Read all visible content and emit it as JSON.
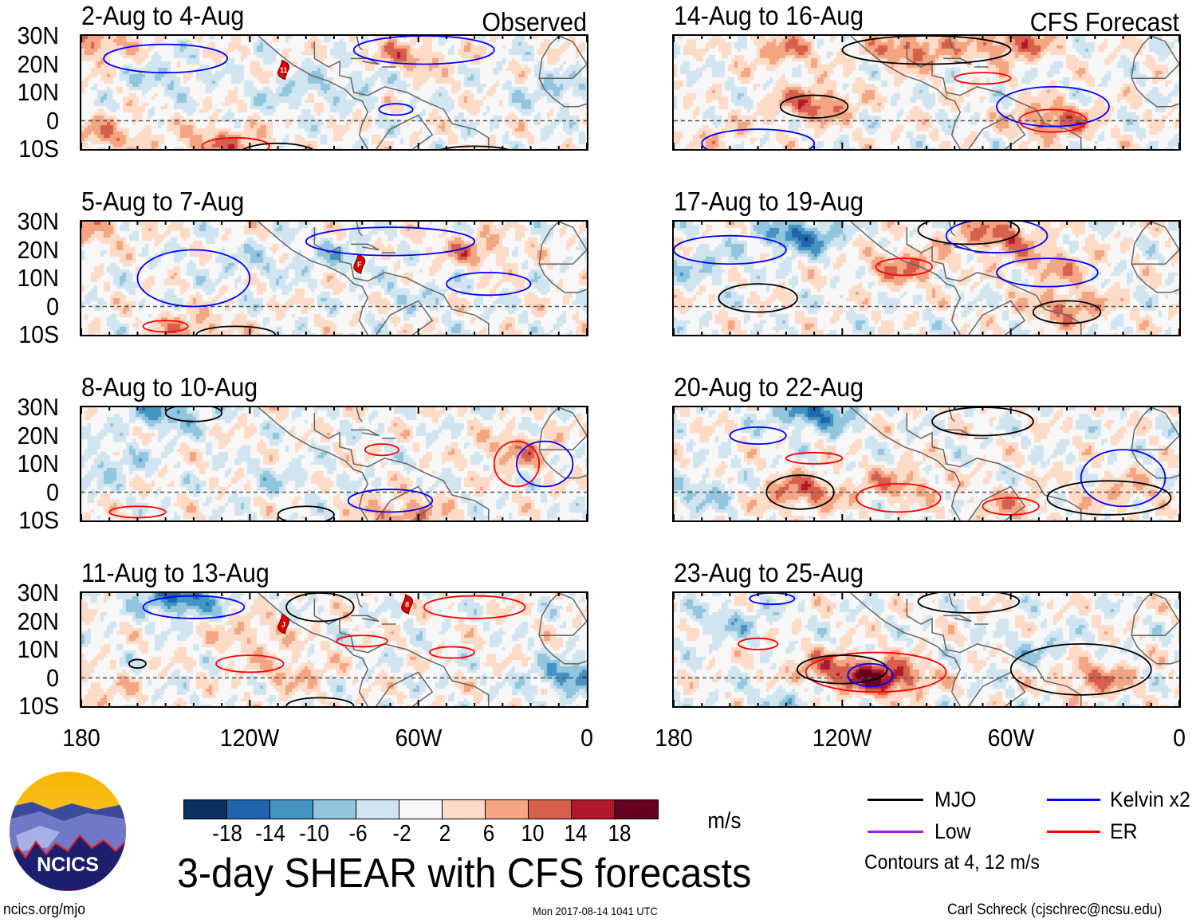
{
  "labels": {
    "observed": "Observed",
    "forecast": "CFS Forecast"
  },
  "lat_ticks": [
    "30N",
    "20N",
    "10N",
    "0",
    "10S"
  ],
  "lon_ticks": [
    "180",
    "120W",
    "60W",
    "0"
  ],
  "colorbar": {
    "colors": [
      "#0a2f61",
      "#2166ac",
      "#4393c3",
      "#92c5de",
      "#d1e5f0",
      "#f7f7f7",
      "#fddbc7",
      "#f4a582",
      "#d6604d",
      "#b2182b",
      "#67001f"
    ],
    "tick_labels": [
      "-18",
      "-14",
      "-10",
      "-6",
      "-2",
      "2",
      "6",
      "10",
      "14",
      "18"
    ],
    "levels": [
      -18,
      -14,
      -10,
      -6,
      -2,
      2,
      6,
      10,
      14,
      18
    ],
    "units": "m/s"
  },
  "legend": {
    "items": [
      {
        "label": "MJO",
        "color": "#000000"
      },
      {
        "label": "Kelvin x2",
        "color": "#0000ff"
      },
      {
        "label": "Low",
        "color": "#a020f0"
      },
      {
        "label": "ER",
        "color": "#ff0000"
      }
    ],
    "contours_note": "Contours at 4, 12 m/s"
  },
  "title": "3-day SHEAR with CFS forecasts",
  "logo": {
    "text": "NCICS"
  },
  "footer": {
    "left": "ncics.org/mjo",
    "center": "Mon 2017-08-14 1041 UTC",
    "right": "Carl Schreck (cjschrec@ncsu.edu)"
  },
  "chart_data": {
    "type": "heatmap",
    "domain": {
      "lon_range": [
        -180,
        0
      ],
      "lat_range": [
        -10,
        30
      ]
    },
    "panels": [
      {
        "title": "2-Aug to 4-Aug",
        "kind": "observed",
        "anomalies": [
          [
            -170,
            -5,
            8
          ],
          [
            -130,
            -8,
            10
          ],
          [
            -150,
            15,
            -5
          ],
          [
            -105,
            10,
            -5
          ],
          [
            -65,
            22,
            9
          ],
          [
            -10,
            10,
            -6
          ],
          [
            -177,
            27,
            10
          ],
          [
            -80,
            15,
            -5
          ]
        ],
        "contours": [
          [
            "kelvin",
            -150,
            22,
            22,
            5
          ],
          [
            "kelvin",
            -58,
            25,
            25,
            5
          ],
          [
            "er",
            -125,
            -9,
            12,
            3
          ],
          [
            "mjo",
            -110,
            -12,
            14,
            4
          ],
          [
            "kelvin",
            -68,
            4,
            6,
            2
          ],
          [
            "mjo",
            -40,
            -12,
            15,
            3
          ]
        ],
        "storms": [
          {
            "label": "11",
            "lon": -108,
            "lat": 18
          }
        ]
      },
      {
        "title": "5-Aug to 7-Aug",
        "kind": "observed",
        "anomalies": [
          [
            -140,
            -8,
            8
          ],
          [
            -40,
            20,
            8
          ],
          [
            -120,
            15,
            -4
          ],
          [
            -60,
            5,
            -4
          ],
          [
            -177,
            28,
            8
          ],
          [
            -90,
            18,
            -5
          ]
        ],
        "contours": [
          [
            "kelvin",
            -140,
            10,
            20,
            10
          ],
          [
            "kelvin",
            -70,
            23,
            30,
            5
          ],
          [
            "kelvin",
            -35,
            8,
            15,
            4
          ],
          [
            "er",
            -150,
            -7,
            8,
            2
          ],
          [
            "mjo",
            -125,
            -10,
            14,
            3
          ]
        ],
        "storms": [
          {
            "label": "F",
            "lon": -81,
            "lat": 15
          }
        ]
      },
      {
        "title": "8-Aug to 10-Aug",
        "kind": "observed",
        "anomalies": [
          [
            -150,
            28,
            -10
          ],
          [
            -65,
            -8,
            10
          ],
          [
            -25,
            15,
            8
          ],
          [
            -170,
            10,
            -6
          ],
          [
            -110,
            5,
            -4
          ]
        ],
        "contours": [
          [
            "mjo",
            -140,
            28,
            10,
            3
          ],
          [
            "er",
            -73,
            15,
            6,
            2
          ],
          [
            "er",
            -160,
            -7,
            10,
            2
          ],
          [
            "kelvin",
            -70,
            -3,
            15,
            4
          ],
          [
            "mjo",
            -100,
            -8,
            10,
            3
          ],
          [
            "er",
            -25,
            10,
            8,
            8
          ],
          [
            "kelvin",
            -15,
            10,
            10,
            8
          ]
        ],
        "storms": []
      },
      {
        "title": "11-Aug to 13-Aug",
        "kind": "observed",
        "anomalies": [
          [
            -145,
            28,
            -15
          ],
          [
            -5,
            0,
            -12
          ],
          [
            -120,
            15,
            6
          ],
          [
            -105,
            2,
            6
          ],
          [
            -175,
            -5,
            5
          ]
        ],
        "contours": [
          [
            "kelvin",
            -140,
            25,
            18,
            4
          ],
          [
            "mjo",
            -95,
            25,
            12,
            5
          ],
          [
            "er",
            -80,
            13,
            9,
            2
          ],
          [
            "er",
            -120,
            5,
            12,
            3
          ],
          [
            "er",
            -40,
            25,
            18,
            4
          ],
          [
            "er",
            -48,
            9,
            8,
            2
          ],
          [
            "mjo",
            -160,
            5,
            3,
            1.5
          ],
          [
            "mjo",
            -95,
            -10,
            12,
            3
          ]
        ],
        "storms": [
          {
            "label": "J",
            "lon": -108,
            "lat": 19
          },
          {
            "label": "8",
            "lon": -64,
            "lat": 26
          }
        ]
      },
      {
        "title": "14-Aug to 16-Aug",
        "kind": "forecast",
        "anomalies": [
          [
            -95,
            25,
            12
          ],
          [
            -130,
            6,
            12
          ],
          [
            -45,
            0,
            12
          ],
          [
            -140,
            25,
            8
          ],
          [
            -60,
            27,
            12
          ],
          [
            -165,
            -5,
            4
          ]
        ],
        "contours": [
          [
            "mjo",
            -130,
            5,
            12,
            4
          ],
          [
            "mjo",
            -90,
            25,
            30,
            5
          ],
          [
            "er",
            -70,
            15,
            10,
            2
          ],
          [
            "kelvin",
            -45,
            5,
            20,
            7
          ],
          [
            "er",
            -45,
            0,
            12,
            4
          ],
          [
            "kelvin",
            -150,
            -8,
            20,
            5
          ]
        ],
        "storms": []
      },
      {
        "title": "17-Aug to 19-Aug",
        "kind": "forecast",
        "anomalies": [
          [
            -135,
            25,
            -14
          ],
          [
            -98,
            14,
            10
          ],
          [
            -65,
            25,
            12
          ],
          [
            -45,
            15,
            8
          ],
          [
            -40,
            0,
            10
          ],
          [
            -170,
            15,
            -6
          ]
        ],
        "contours": [
          [
            "mjo",
            -75,
            27,
            18,
            5
          ],
          [
            "kelvin",
            -65,
            25,
            18,
            6
          ],
          [
            "er",
            -98,
            14,
            10,
            3
          ],
          [
            "mjo",
            -150,
            3,
            14,
            5
          ],
          [
            "kelvin",
            -47,
            12,
            18,
            5
          ],
          [
            "mjo",
            -40,
            -2,
            12,
            4
          ],
          [
            "kelvin",
            -160,
            20,
            20,
            5
          ]
        ],
        "storms": []
      },
      {
        "title": "20-Aug to 22-Aug",
        "kind": "forecast",
        "anomalies": [
          [
            -135,
            0,
            12
          ],
          [
            -130,
            28,
            -14
          ],
          [
            -100,
            3,
            8
          ],
          [
            -20,
            0,
            6
          ],
          [
            -60,
            -5,
            6
          ],
          [
            -170,
            0,
            -6
          ]
        ],
        "contours": [
          [
            "mjo",
            -135,
            0,
            12,
            6
          ],
          [
            "er",
            -130,
            12,
            10,
            2
          ],
          [
            "mjo",
            -70,
            25,
            18,
            5
          ],
          [
            "er",
            -100,
            -2,
            15,
            5
          ],
          [
            "er",
            -60,
            -5,
            10,
            3
          ],
          [
            "mjo",
            -25,
            -2,
            22,
            6
          ],
          [
            "kelvin",
            -20,
            5,
            15,
            10
          ],
          [
            "kelvin",
            -150,
            20,
            10,
            3
          ]
        ],
        "storms": []
      },
      {
        "title": "23-Aug to 25-Aug",
        "kind": "forecast",
        "anomalies": [
          [
            -105,
            0,
            18
          ],
          [
            -125,
            3,
            10
          ],
          [
            -30,
            0,
            10
          ],
          [
            -160,
            20,
            -6
          ],
          [
            -50,
            10,
            -5
          ],
          [
            -140,
            -8,
            -5
          ]
        ],
        "contours": [
          [
            "er",
            -108,
            2,
            25,
            7
          ],
          [
            "mjo",
            -120,
            3,
            16,
            5
          ],
          [
            "kelvin",
            -110,
            1,
            8,
            4
          ],
          [
            "mjo",
            -35,
            3,
            25,
            9
          ],
          [
            "er",
            -150,
            12,
            7,
            2
          ],
          [
            "mjo",
            -75,
            27,
            18,
            4
          ],
          [
            "kelvin",
            -145,
            28,
            8,
            2
          ]
        ],
        "storms": []
      }
    ]
  }
}
